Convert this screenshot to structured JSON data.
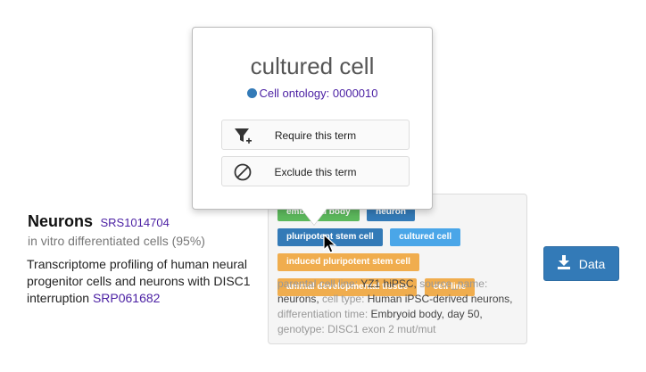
{
  "sample": {
    "title": "Neurons",
    "id": "SRS1014704",
    "subtitle": "in vitro differentiated cells (95%)",
    "description": "Transcriptome profiling of human neural progenitor cells and neurons with DISC1 interruption",
    "project_id": "SRP061682"
  },
  "tags": [
    {
      "label": "embryoid body",
      "color": "green"
    },
    {
      "label": "neuron",
      "color": "blue"
    },
    {
      "label": "pluripotent stem cell",
      "color": "blue"
    },
    {
      "label": "cultured cell",
      "color": "lightblue"
    },
    {
      "label": "induced pluripotent stem cell",
      "color": "orange"
    },
    {
      "label": "animal developmental tissue",
      "color": "orange"
    },
    {
      "label": "cell line",
      "color": "orange"
    }
  ],
  "metadata": [
    {
      "key": "parental cell line:",
      "value": "YZ1 hiPSC,"
    },
    {
      "key": "source_name:",
      "value": "neurons,"
    },
    {
      "key": "cell type:",
      "value": "Human iPSC-derived neurons,"
    },
    {
      "key": "differentiation time:",
      "value": "Embryoid body, day 50,"
    },
    {
      "key": "genotype:",
      "value": "DISC1 exon 2 mut/mut"
    }
  ],
  "data_button": {
    "label": "Data",
    "icon": "download-icon"
  },
  "popover": {
    "title": "cultured cell",
    "ontology": "Cell ontology: 0000010",
    "require_label": "Require this term",
    "exclude_label": "Exclude this term"
  },
  "colors": {
    "green": "#5cb85c",
    "blue": "#337ab7",
    "lightblue": "#4aa6e8",
    "orange": "#f0ad4e",
    "link": "#4a1fa3"
  }
}
